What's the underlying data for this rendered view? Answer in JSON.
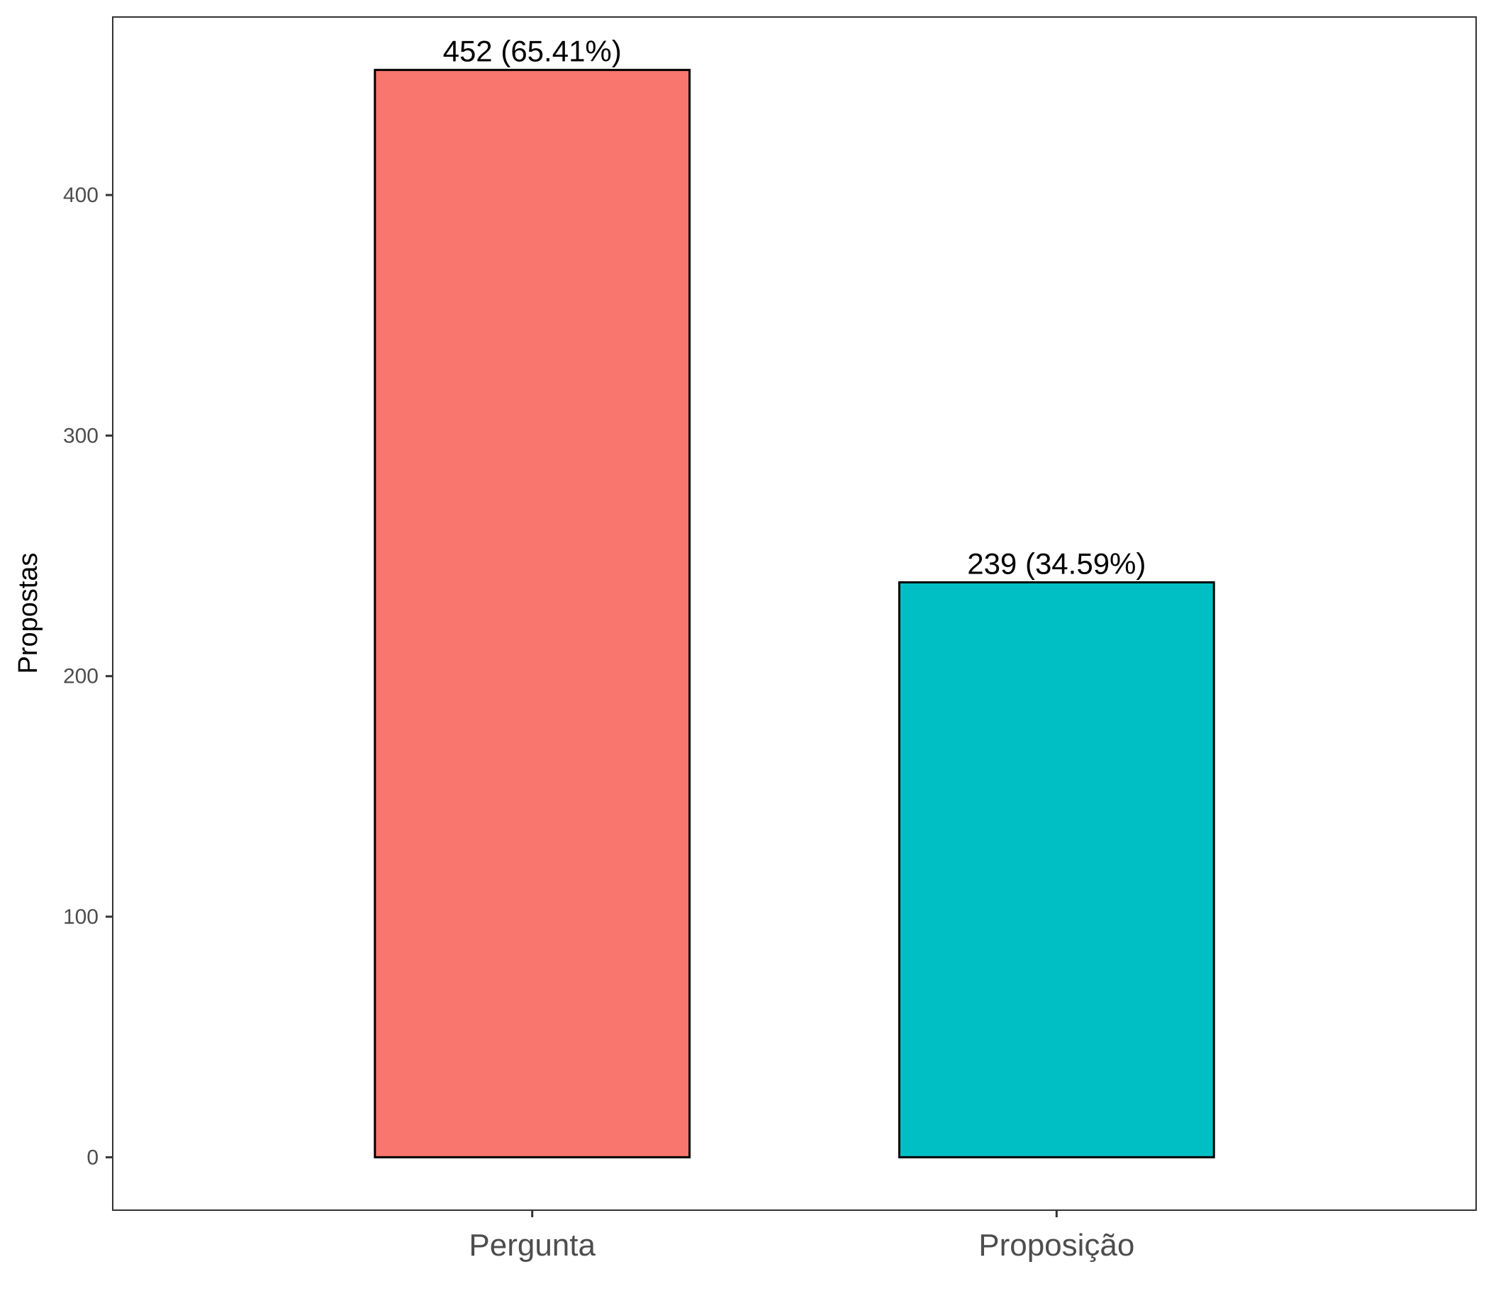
{
  "chart_data": {
    "type": "bar",
    "categories": [
      "Pergunta",
      "Proposição"
    ],
    "values": [
      452,
      239
    ],
    "data_labels": [
      "452 (65.41%)",
      "239 (34.59%)"
    ],
    "colors": [
      "#F8766D",
      "#00BFC4"
    ],
    "title": "",
    "xlabel": "",
    "ylabel": "Propostas",
    "ylim": [
      -22,
      474
    ],
    "yticks": [
      0,
      100,
      200,
      300,
      400
    ],
    "ytick_labels": [
      "0",
      "100",
      "200",
      "300",
      "400"
    ],
    "grid": false,
    "legend": "none"
  }
}
